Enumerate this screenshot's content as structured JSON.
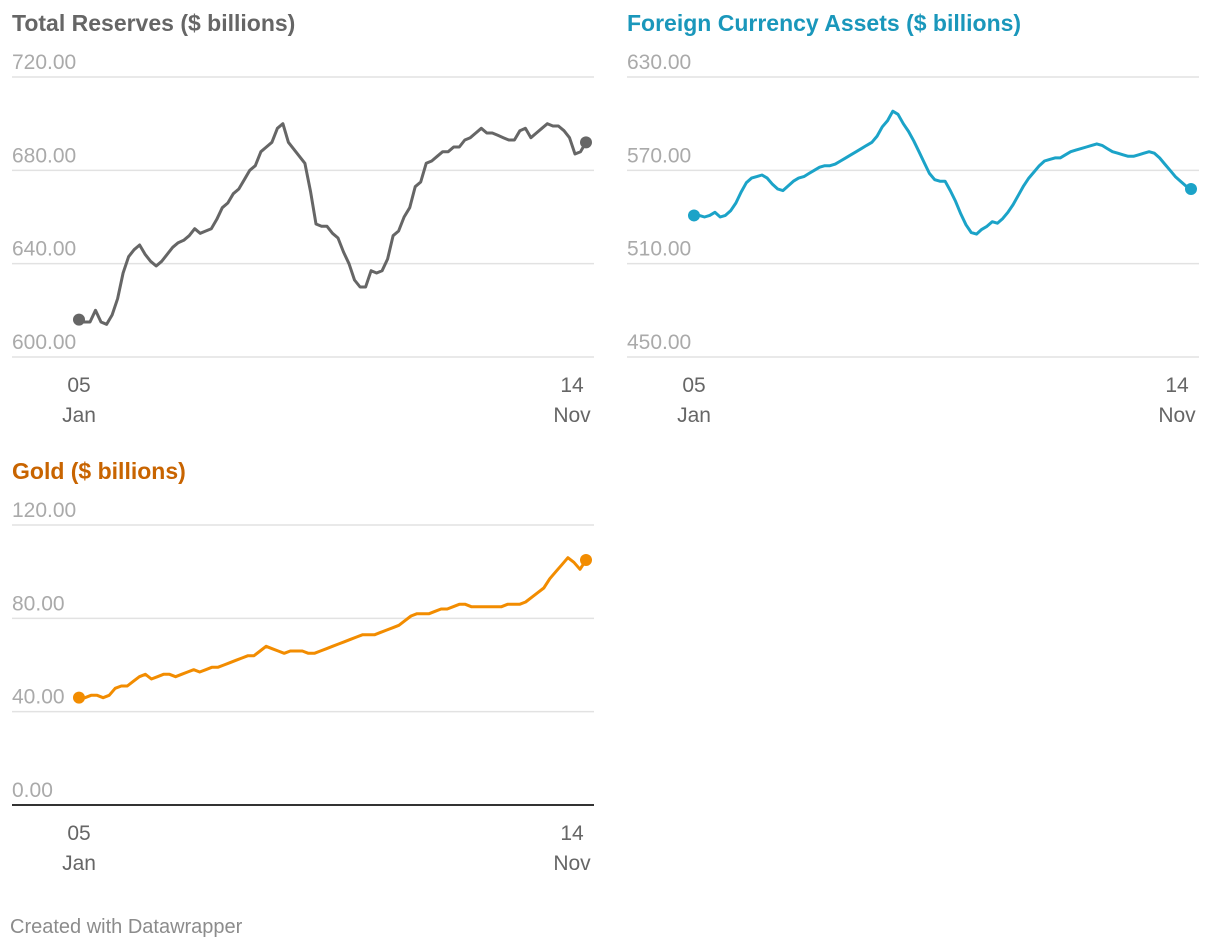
{
  "footer": "Created with Datawrapper",
  "chart_data": [
    {
      "type": "line",
      "title": "Total Reserves ($ billions)",
      "color": "#666666",
      "ylim": [
        600,
        720
      ],
      "yticks": [
        "600.00",
        "640.00",
        "680.00",
        "720.00"
      ],
      "baseline_dark": false,
      "x_labels": [
        {
          "day": "05",
          "month": "Jan"
        },
        {
          "day": "14",
          "month": "Nov"
        }
      ],
      "grid": true,
      "values": [
        616,
        615,
        615,
        620,
        615,
        614,
        618,
        625,
        636,
        643,
        646,
        648,
        644,
        641,
        639,
        641,
        644,
        647,
        649,
        650,
        652,
        655,
        653,
        654,
        655,
        659,
        664,
        666,
        670,
        672,
        676,
        680,
        682,
        688,
        690,
        692,
        698,
        700,
        692,
        689,
        686,
        683,
        671,
        657,
        656,
        656,
        653,
        651,
        645,
        640,
        633,
        630,
        630,
        637,
        636,
        637,
        642,
        652,
        654,
        660,
        664,
        673,
        675,
        683,
        684,
        686,
        688,
        688,
        690,
        690,
        693,
        694,
        696,
        698,
        696,
        696,
        695,
        694,
        693,
        693,
        697,
        698,
        694,
        696,
        698,
        700,
        699,
        699,
        697,
        694,
        687,
        688,
        692
      ]
    },
    {
      "type": "line",
      "title": "Foreign Currency Assets ($ billions)",
      "color": "#1ba3c8",
      "ylim": [
        450,
        630
      ],
      "yticks": [
        "450.00",
        "510.00",
        "570.00",
        "630.00"
      ],
      "baseline_dark": false,
      "x_labels": [
        {
          "day": "05",
          "month": "Jan"
        },
        {
          "day": "14",
          "month": "Nov"
        }
      ],
      "grid": true,
      "values": [
        541,
        541,
        540,
        541,
        543,
        540,
        541,
        544,
        549,
        556,
        562,
        565,
        566,
        567,
        565,
        561,
        558,
        557,
        560,
        563,
        565,
        566,
        568,
        570,
        572,
        573,
        573,
        574,
        576,
        578,
        580,
        582,
        584,
        586,
        588,
        592,
        598,
        602,
        608,
        606,
        600,
        595,
        589,
        582,
        575,
        568,
        564,
        563,
        563,
        557,
        550,
        542,
        535,
        530,
        529,
        532,
        534,
        537,
        536,
        539,
        543,
        548,
        554,
        560,
        565,
        569,
        573,
        576,
        577,
        578,
        578,
        580,
        582,
        583,
        584,
        585,
        586,
        587,
        586,
        584,
        582,
        581,
        580,
        579,
        579,
        580,
        581,
        582,
        581,
        578,
        574,
        570,
        566,
        563,
        560,
        558
      ]
    },
    {
      "type": "line",
      "title": "Gold ($ billions)",
      "color": "#f28c00",
      "ylim": [
        0,
        120
      ],
      "yticks": [
        "0.00",
        "40.00",
        "80.00",
        "120.00"
      ],
      "baseline_dark": true,
      "x_labels": [
        {
          "day": "05",
          "month": "Jan"
        },
        {
          "day": "14",
          "month": "Nov"
        }
      ],
      "grid": true,
      "values": [
        46,
        46,
        47,
        47,
        46,
        47,
        50,
        51,
        51,
        53,
        55,
        56,
        54,
        55,
        56,
        56,
        55,
        56,
        57,
        58,
        57,
        58,
        59,
        59,
        60,
        61,
        62,
        63,
        64,
        64,
        66,
        68,
        67,
        66,
        65,
        66,
        66,
        66,
        65,
        65,
        66,
        67,
        68,
        69,
        70,
        71,
        72,
        73,
        73,
        73,
        74,
        75,
        76,
        77,
        79,
        81,
        82,
        82,
        82,
        83,
        84,
        84,
        85,
        86,
        86,
        85,
        85,
        85,
        85,
        85,
        85,
        86,
        86,
        86,
        87,
        89,
        91,
        93,
        97,
        100,
        103,
        106,
        104,
        101,
        105
      ]
    }
  ]
}
